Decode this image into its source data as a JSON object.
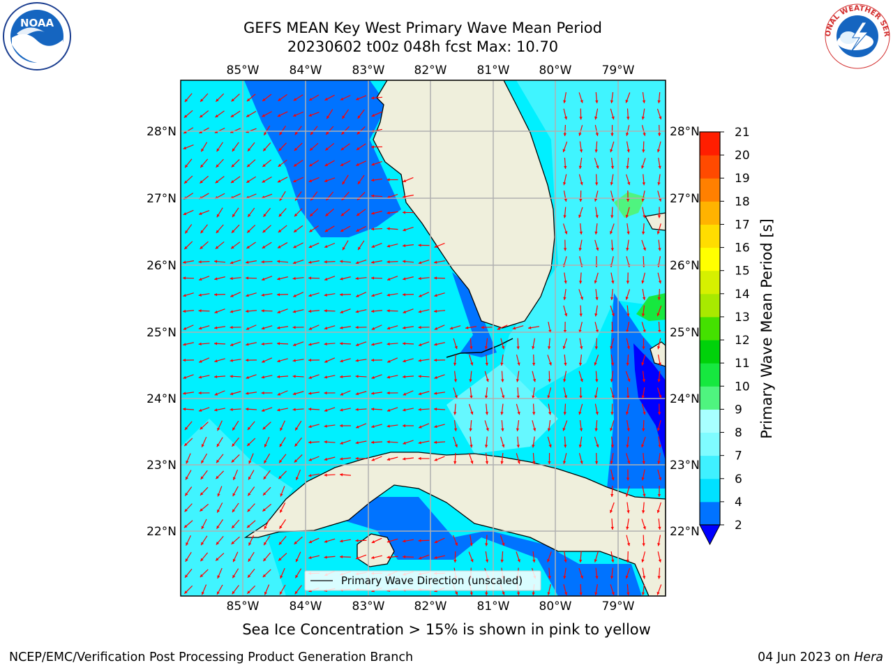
{
  "header": {
    "title_line1": "GEFS MEAN Key West Primary Wave Mean Period",
    "title_line2": "20230602 t00z 048h fcst   Max: 10.70"
  },
  "map": {
    "lon_labels": [
      "85°W",
      "84°W",
      "83°W",
      "82°W",
      "81°W",
      "80°W",
      "79°W"
    ],
    "lat_labels": [
      "28°N",
      "27°N",
      "26°N",
      "25°N",
      "24°N",
      "23°N",
      "22°N"
    ],
    "legend_label": "Primary Wave Direction (unscaled)",
    "arrow_color": "#ff0000"
  },
  "colorbar": {
    "label": "Primary Wave Mean Period [s]",
    "levels": [
      2,
      4,
      6,
      7,
      8,
      9,
      10,
      11,
      12,
      13,
      14,
      15,
      16,
      17,
      18,
      19,
      20,
      21
    ],
    "tick_labels": [
      "2",
      "4",
      "6",
      "7",
      "8",
      "9",
      "10",
      "11",
      "12",
      "13",
      "14",
      "15",
      "16",
      "17",
      "18",
      "19",
      "20",
      "21"
    ],
    "colors": [
      "#0073ff",
      "#00e1ff",
      "#3ff1ff",
      "#7ffcff",
      "#a8ffff",
      "#4ff47f",
      "#16e83f",
      "#00d20a",
      "#44e100",
      "#a8e900",
      "#d6f000",
      "#ffff00",
      "#ffdd00",
      "#ffb300",
      "#ff8000",
      "#ff4a00",
      "#ff1e00"
    ],
    "under_color": "#0000ff"
  },
  "footer": {
    "note": "Sea Ice Concentration > 15% is shown in pink to yellow",
    "left": "NCEP/EMC/Verification Post Processing Product Generation Branch",
    "date": "04 Jun 2023 on ",
    "host": "Hera"
  },
  "logos": {
    "noaa_text": "NOAA",
    "nws_text": "NATIONAL WEATHER SERVICE"
  }
}
